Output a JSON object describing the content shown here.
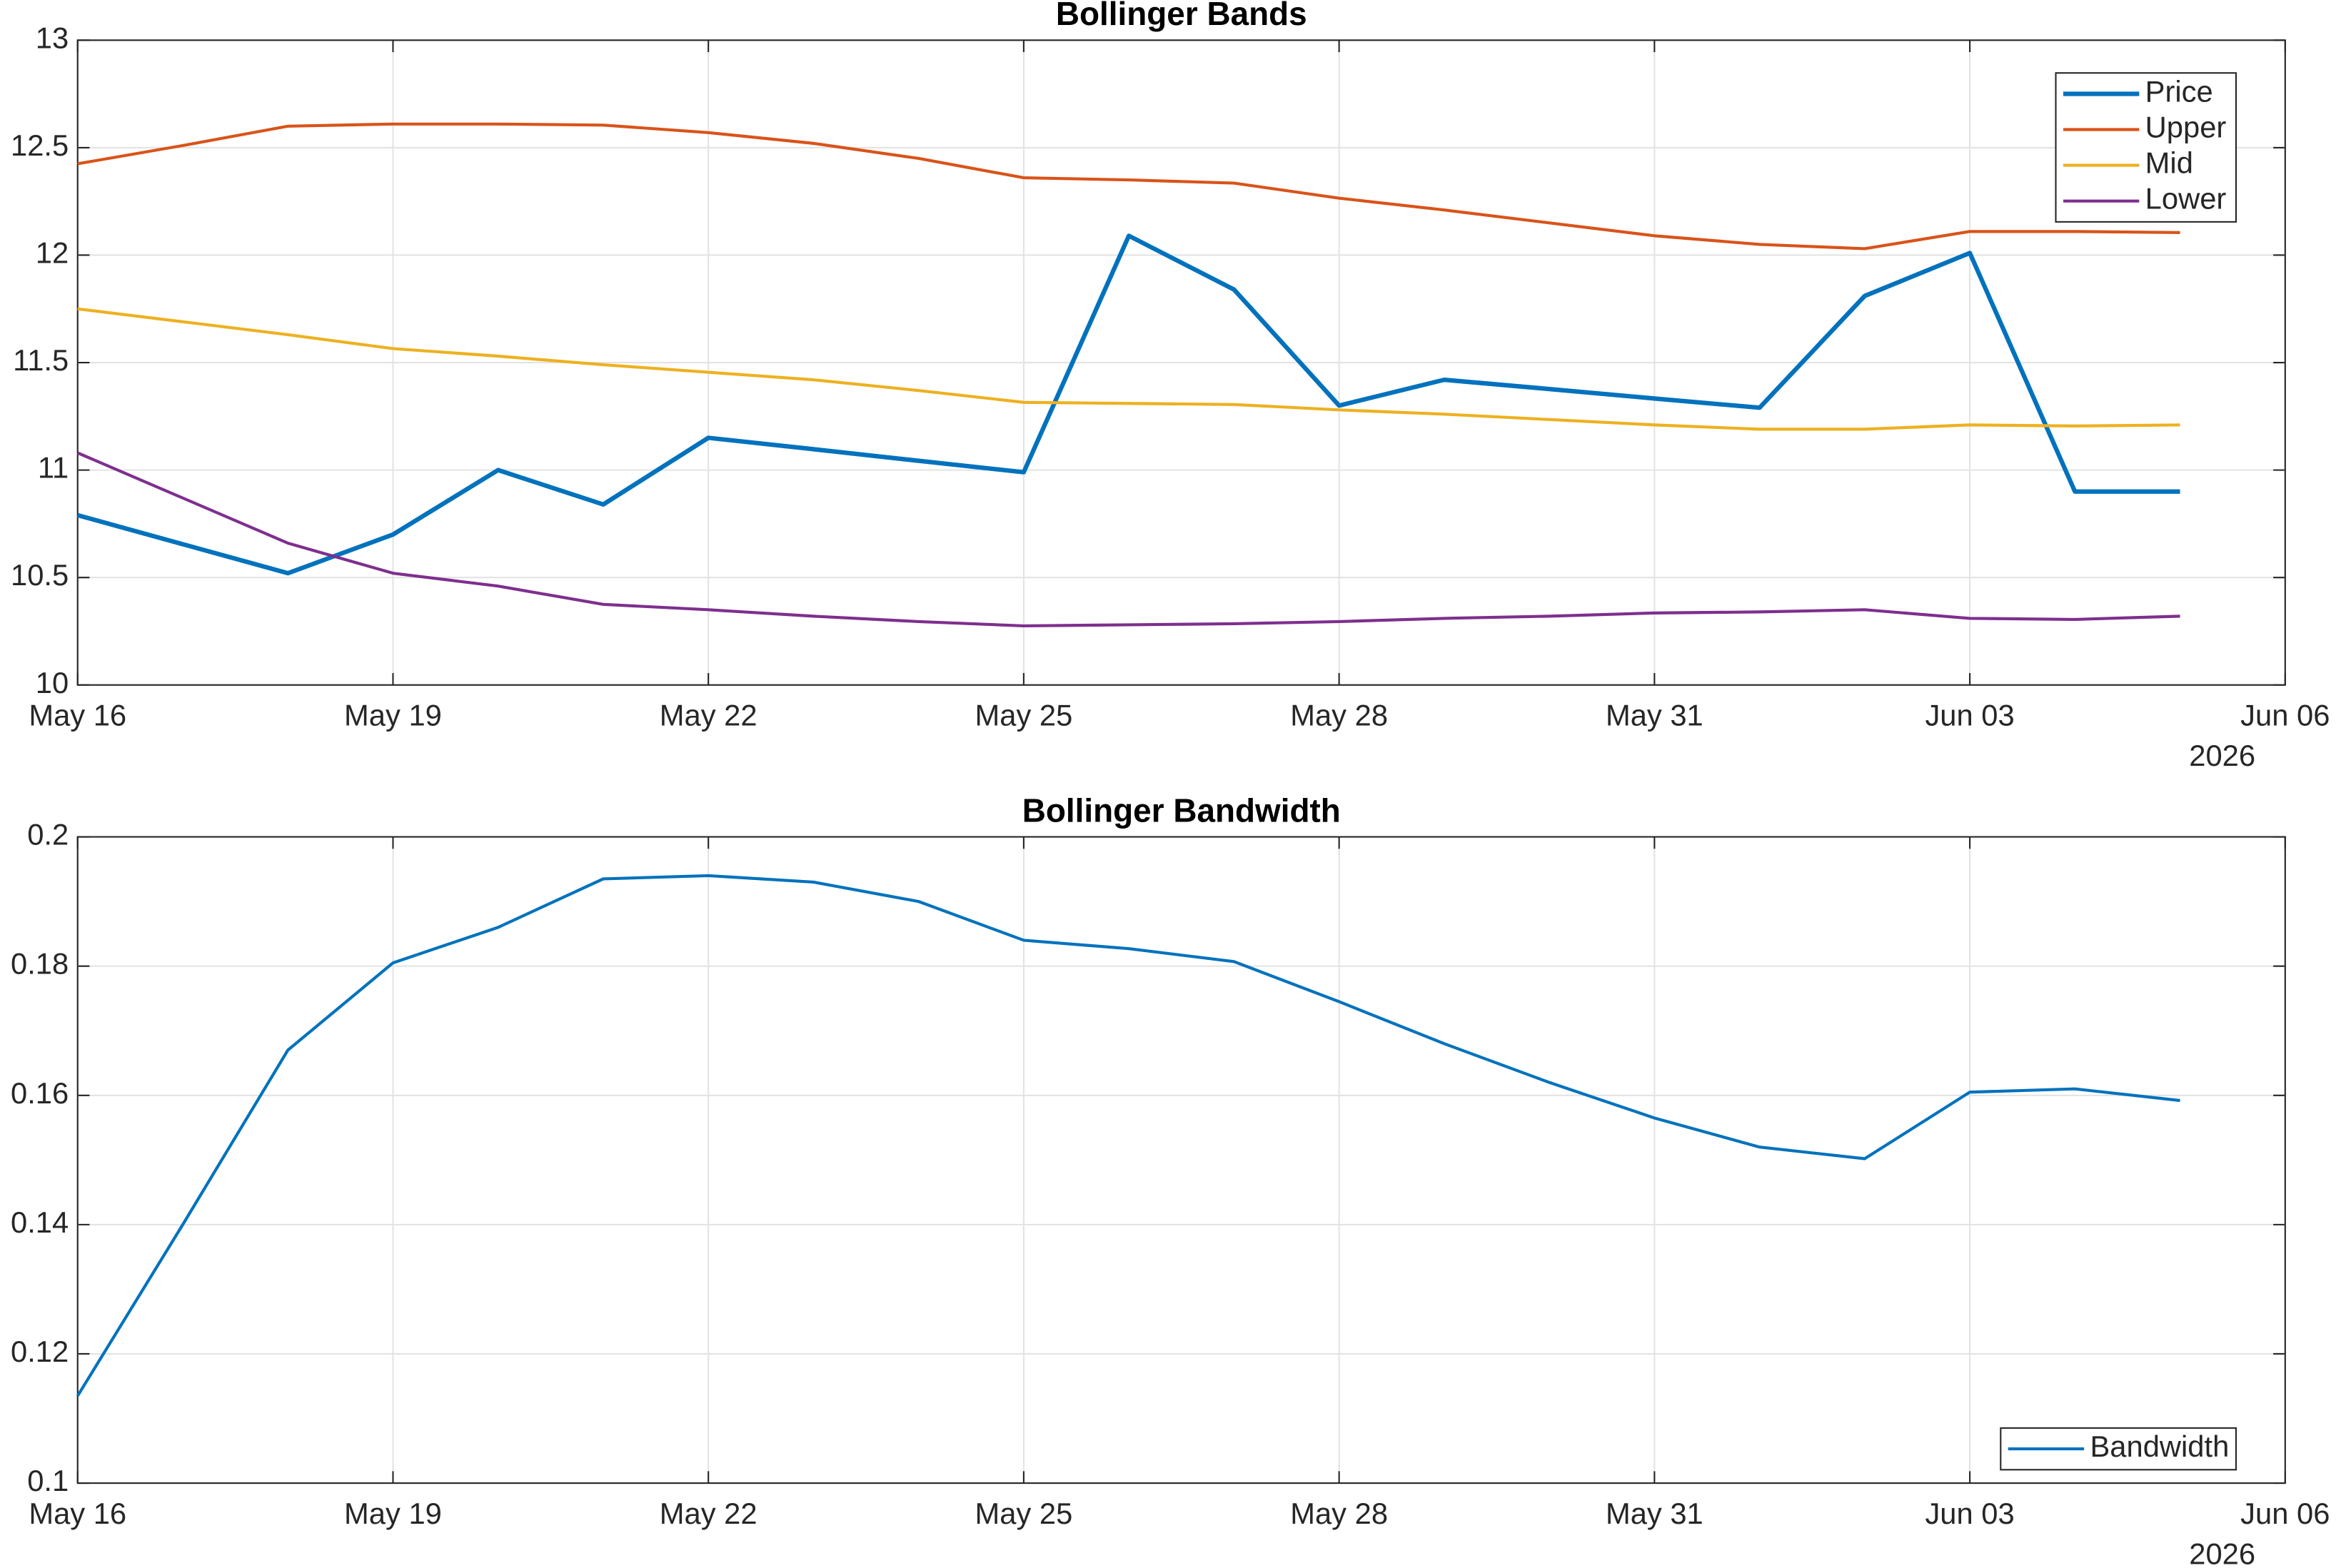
{
  "chart_data": [
    {
      "type": "line",
      "title": "Bollinger Bands",
      "x": [
        "2026-05-16",
        "2026-05-17",
        "2026-05-18",
        "2026-05-19",
        "2026-05-20",
        "2026-05-21",
        "2026-05-22",
        "2026-05-23",
        "2026-05-24",
        "2026-05-25",
        "2026-05-26",
        "2026-05-27",
        "2026-05-28",
        "2026-05-29",
        "2026-05-30",
        "2026-05-31",
        "2026-06-01",
        "2026-06-02",
        "2026-06-03",
        "2026-06-04",
        "2026-06-05"
      ],
      "series": [
        {
          "name": "Price",
          "color": "#0072bd",
          "linewidth": 3,
          "values": [
            10.79,
            10.655,
            10.52,
            10.7,
            11.0,
            10.84,
            11.15,
            11.097,
            11.043,
            10.99,
            12.09,
            11.84,
            11.3,
            11.42,
            11.377,
            11.333,
            11.29,
            11.81,
            12.01,
            10.9,
            10.9
          ]
        },
        {
          "name": "Upper",
          "color": "#d95319",
          "linewidth": 2,
          "values": [
            12.425,
            12.51,
            12.6,
            12.61,
            12.61,
            12.605,
            12.57,
            12.52,
            12.45,
            12.36,
            12.35,
            12.335,
            12.265,
            12.21,
            12.15,
            12.09,
            12.05,
            12.03,
            12.11,
            12.11,
            12.105
          ]
        },
        {
          "name": "Mid",
          "color": "#edb120",
          "linewidth": 2,
          "values": [
            11.75,
            11.69,
            11.63,
            11.565,
            11.53,
            11.49,
            11.455,
            11.42,
            11.37,
            11.315,
            11.31,
            11.305,
            11.28,
            11.26,
            11.235,
            11.21,
            11.19,
            11.19,
            11.21,
            11.205,
            11.21
          ]
        },
        {
          "name": "Lower",
          "color": "#7e2f8e",
          "linewidth": 2,
          "values": [
            11.08,
            10.87,
            10.66,
            10.52,
            10.46,
            10.375,
            10.35,
            10.32,
            10.295,
            10.275,
            10.28,
            10.285,
            10.295,
            10.31,
            10.32,
            10.335,
            10.34,
            10.35,
            10.31,
            10.305,
            10.32
          ]
        }
      ],
      "xlim": [
        "2026-05-16",
        "2026-06-06"
      ],
      "xticks": [
        {
          "value": "2026-05-16",
          "label": "May 16"
        },
        {
          "value": "2026-05-19",
          "label": "May 19"
        },
        {
          "value": "2026-05-22",
          "label": "May 22"
        },
        {
          "value": "2026-05-25",
          "label": "May 25"
        },
        {
          "value": "2026-05-28",
          "label": "May 28"
        },
        {
          "value": "2026-05-31",
          "label": "May 31"
        },
        {
          "value": "2026-06-03",
          "label": "Jun 03"
        },
        {
          "value": "2026-06-06",
          "label": "Jun 06"
        }
      ],
      "x_year": "2026",
      "ylim": [
        10,
        13
      ],
      "yticks": [
        10,
        10.5,
        11,
        11.5,
        12,
        12.5,
        13
      ],
      "grid": true,
      "legend": "northeast"
    },
    {
      "type": "line",
      "title": "Bollinger Bandwidth",
      "x": [
        "2026-05-16",
        "2026-05-17",
        "2026-05-18",
        "2026-05-19",
        "2026-05-20",
        "2026-05-21",
        "2026-05-22",
        "2026-05-23",
        "2026-05-24",
        "2026-05-25",
        "2026-05-26",
        "2026-05-27",
        "2026-05-28",
        "2026-05-29",
        "2026-05-30",
        "2026-05-31",
        "2026-06-01",
        "2026-06-02",
        "2026-06-03",
        "2026-06-04",
        "2026-06-05"
      ],
      "series": [
        {
          "name": "Bandwidth",
          "color": "#0072bd",
          "linewidth": 2,
          "values": [
            0.1135,
            0.14,
            0.167,
            0.1805,
            0.186,
            0.1935,
            0.194,
            0.193,
            0.19,
            0.184,
            0.1827,
            0.1807,
            0.1745,
            0.168,
            0.162,
            0.1565,
            0.152,
            0.1502,
            0.1605,
            0.161,
            0.1592
          ]
        }
      ],
      "xlim": [
        "2026-05-16",
        "2026-06-06"
      ],
      "xticks": [
        {
          "value": "2026-05-16",
          "label": "May 16"
        },
        {
          "value": "2026-05-19",
          "label": "May 19"
        },
        {
          "value": "2026-05-22",
          "label": "May 22"
        },
        {
          "value": "2026-05-25",
          "label": "May 25"
        },
        {
          "value": "2026-05-28",
          "label": "May 28"
        },
        {
          "value": "2026-05-31",
          "label": "May 31"
        },
        {
          "value": "2026-06-03",
          "label": "Jun 03"
        },
        {
          "value": "2026-06-06",
          "label": "Jun 06"
        }
      ],
      "x_year": "2026",
      "ylim": [
        0.1,
        0.2
      ],
      "yticks": [
        0.1,
        0.12,
        0.14,
        0.16,
        0.18,
        0.2
      ],
      "grid": true,
      "legend": "southeast"
    }
  ]
}
